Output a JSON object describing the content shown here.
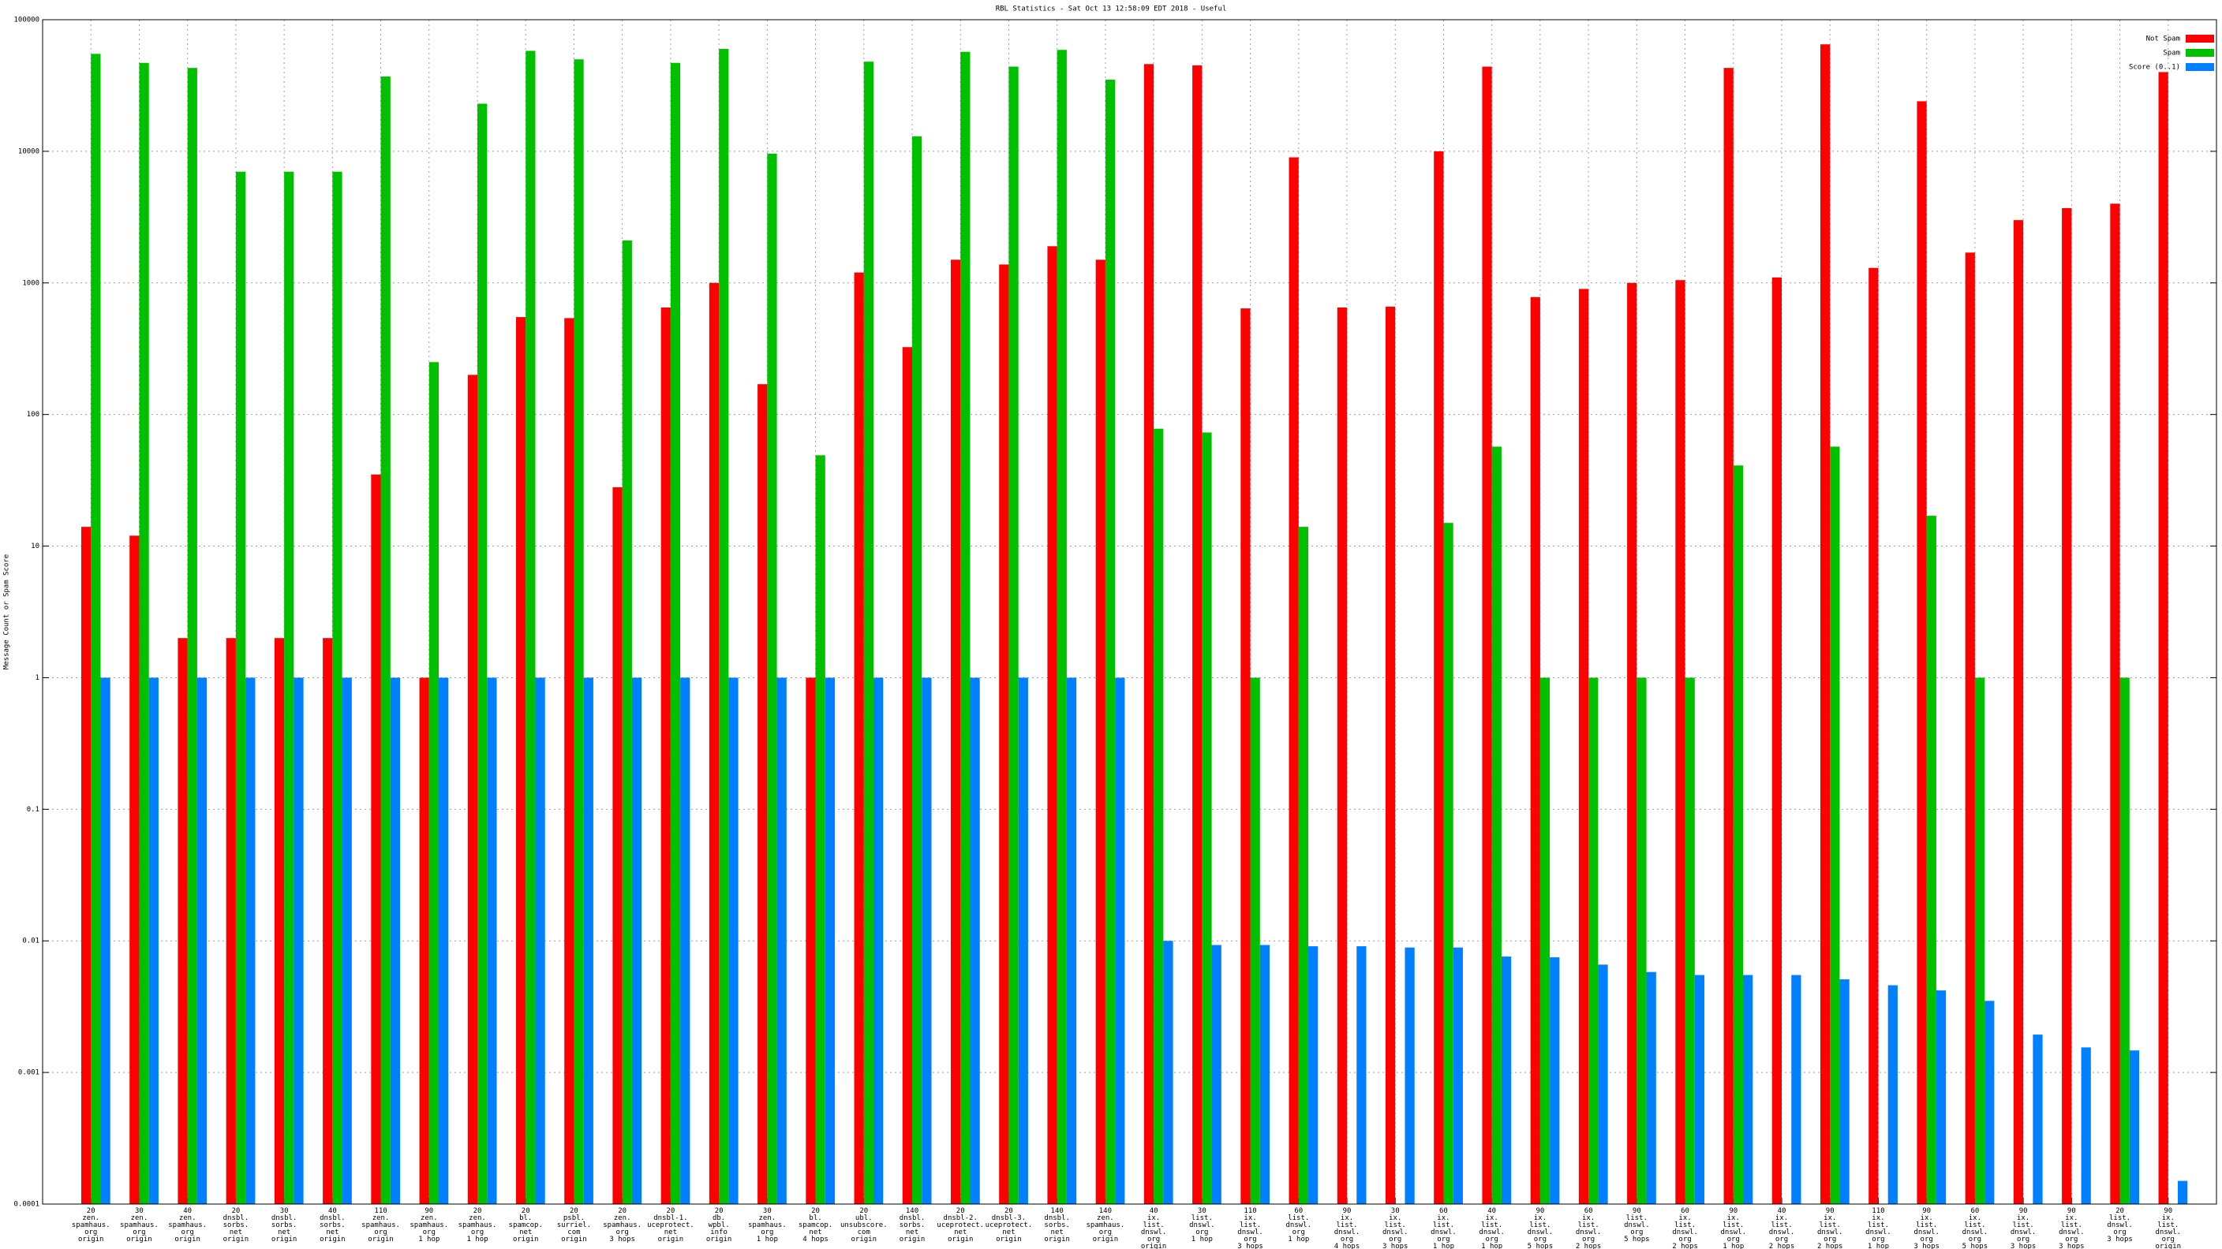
{
  "chart_data": {
    "type": "bar",
    "title": "RBL Statistics - Sat Oct 13 12:58:09 EDT 2018 - Useful",
    "y_label": "Message Count or Spam Score",
    "log_y": true,
    "grid": true,
    "legend": "top-right",
    "xlim": [
      -1,
      44
    ],
    "ylim": [
      0.0001,
      100000
    ],
    "yticks": [
      100000,
      10000,
      1000,
      100,
      10,
      1,
      0.1,
      0.01,
      0.001,
      0.0001
    ],
    "categories": [
      [
        "20",
        "zen.",
        "spamhaus.",
        "org",
        "origin"
      ],
      [
        "30",
        "zen.",
        "spamhaus.",
        "org",
        "origin"
      ],
      [
        "40",
        "zen.",
        "spamhaus.",
        "org",
        "origin"
      ],
      [
        "20",
        "dnsbl.",
        "sorbs.",
        "net",
        "origin"
      ],
      [
        "30",
        "dnsbl.",
        "sorbs.",
        "net",
        "origin"
      ],
      [
        "40",
        "dnsbl.",
        "sorbs.",
        "net",
        "origin"
      ],
      [
        "110",
        "zen.",
        "spamhaus.",
        "org",
        "origin"
      ],
      [
        "90",
        "zen.",
        "spamhaus.",
        "org",
        "1 hop"
      ],
      [
        "20",
        "zen.",
        "spamhaus.",
        "org",
        "1 hop"
      ],
      [
        "20",
        "bl.",
        "spamcop.",
        "net",
        "origin"
      ],
      [
        "20",
        "psbl.",
        "surriel.",
        "com",
        "origin"
      ],
      [
        "20",
        "zen.",
        "spamhaus.",
        "org",
        "3 hops"
      ],
      [
        "20",
        "dnsbl-1.",
        "uceprotect.",
        "net",
        "origin"
      ],
      [
        "20",
        "db.",
        "wpbl.",
        "info",
        "origin"
      ],
      [
        "30",
        "zen.",
        "spamhaus.",
        "org",
        "1 hop"
      ],
      [
        "20",
        "bl.",
        "spamcop.",
        "net",
        "4 hops"
      ],
      [
        "20",
        "ubl.",
        "unsubscore.",
        "com",
        "origin"
      ],
      [
        "140",
        "dnsbl.",
        "sorbs.",
        "net",
        "origin"
      ],
      [
        "20",
        "dnsbl-2.",
        "uceprotect.",
        "net",
        "origin"
      ],
      [
        "20",
        "dnsbl-3.",
        "uceprotect.",
        "net",
        "origin"
      ],
      [
        "140",
        "dnsbl.",
        "sorbs.",
        "net",
        "origin"
      ],
      [
        "140",
        "zen.",
        "spamhaus.",
        "org",
        "origin"
      ],
      [
        "40",
        "ix.",
        "list.",
        "dnswl.",
        "org",
        "origin"
      ],
      [
        "30",
        "list.",
        "dnswl.",
        "org",
        "1 hop"
      ],
      [
        "110",
        "ix.",
        "list.",
        "dnswl.",
        "org",
        "3 hops"
      ],
      [
        "60",
        "list.",
        "dnswl.",
        "org",
        "1 hop"
      ],
      [
        "90",
        "ix.",
        "list.",
        "dnswl.",
        "org",
        "4 hops"
      ],
      [
        "30",
        "ix.",
        "list.",
        "dnswl.",
        "org",
        "3 hops"
      ],
      [
        "60",
        "ix.",
        "list.",
        "dnswl.",
        "org",
        "1 hop"
      ],
      [
        "40",
        "ix.",
        "list.",
        "dnswl.",
        "org",
        "1 hop"
      ],
      [
        "90",
        "ix.",
        "list.",
        "dnswl.",
        "org",
        "5 hops"
      ],
      [
        "60",
        "ix.",
        "list.",
        "dnswl.",
        "org",
        "2 hops"
      ],
      [
        "90",
        "list.",
        "dnswl.",
        "org",
        "5 hops"
      ],
      [
        "60",
        "ix.",
        "list.",
        "dnswl.",
        "org",
        "2 hops"
      ],
      [
        "90",
        "ix.",
        "list.",
        "dnswl.",
        "org",
        "1 hop"
      ],
      [
        "40",
        "ix.",
        "list.",
        "dnswl.",
        "org",
        "2 hops"
      ],
      [
        "90",
        "ix.",
        "list.",
        "dnswl.",
        "org",
        "2 hops"
      ],
      [
        "110",
        "ix.",
        "list.",
        "dnswl.",
        "org",
        "1 hop"
      ],
      [
        "90",
        "ix.",
        "list.",
        "dnswl.",
        "org",
        "3 hops"
      ],
      [
        "60",
        "ix.",
        "list.",
        "dnswl.",
        "org",
        "5 hops"
      ],
      [
        "90",
        "ix.",
        "list.",
        "dnswl.",
        "org",
        "3 hops"
      ],
      [
        "90",
        "ix.",
        "list.",
        "dnswl.",
        "org",
        "3 hops"
      ],
      [
        "20",
        "list.",
        "dnswl.",
        "org",
        "3 hops"
      ],
      [
        "90",
        "ix.",
        "list.",
        "dnswl.",
        "org",
        "origin"
      ]
    ],
    "series": [
      {
        "name": "Not Spam",
        "color": "#ff0000",
        "values": [
          14,
          12,
          2,
          2,
          2,
          2,
          35,
          1,
          200,
          550,
          540,
          28,
          650,
          1000,
          170,
          1,
          1200,
          325,
          1500,
          1380,
          1900,
          1500,
          46000,
          45000,
          640,
          9000,
          650,
          660,
          10000,
          44000,
          780,
          900,
          1000,
          1050,
          43000,
          1100,
          65000,
          1300,
          24000,
          1700,
          3000,
          3700,
          4000,
          40000
        ]
      },
      {
        "name": "Spam",
        "color": "#00c000",
        "values": [
          55000,
          47000,
          43000,
          7000,
          7000,
          7000,
          37000,
          250,
          23000,
          58000,
          50000,
          2100,
          47000,
          60000,
          9600,
          49,
          48000,
          13000,
          57000,
          44000,
          59000,
          35000,
          78,
          73,
          1,
          14,
          null,
          null,
          15,
          57,
          1,
          1,
          1,
          1,
          41,
          null,
          57,
          null,
          17,
          1,
          null,
          null,
          1,
          null
        ]
      },
      {
        "name": "Score (0..1)",
        "color": "#0080ff",
        "values": [
          1,
          1,
          1,
          1,
          1,
          1,
          1,
          1,
          1,
          1,
          1,
          1,
          1,
          1,
          1,
          1,
          1,
          1,
          1,
          1,
          1,
          1,
          0.01,
          0.0093,
          0.0093,
          0.0091,
          0.0091,
          0.0089,
          0.0089,
          0.0076,
          0.0075,
          0.0066,
          0.0058,
          0.0055,
          0.0055,
          0.0055,
          0.0051,
          0.0046,
          0.0042,
          0.0035,
          0.00194,
          0.00155,
          0.00147,
          0.00015
        ]
      }
    ]
  }
}
